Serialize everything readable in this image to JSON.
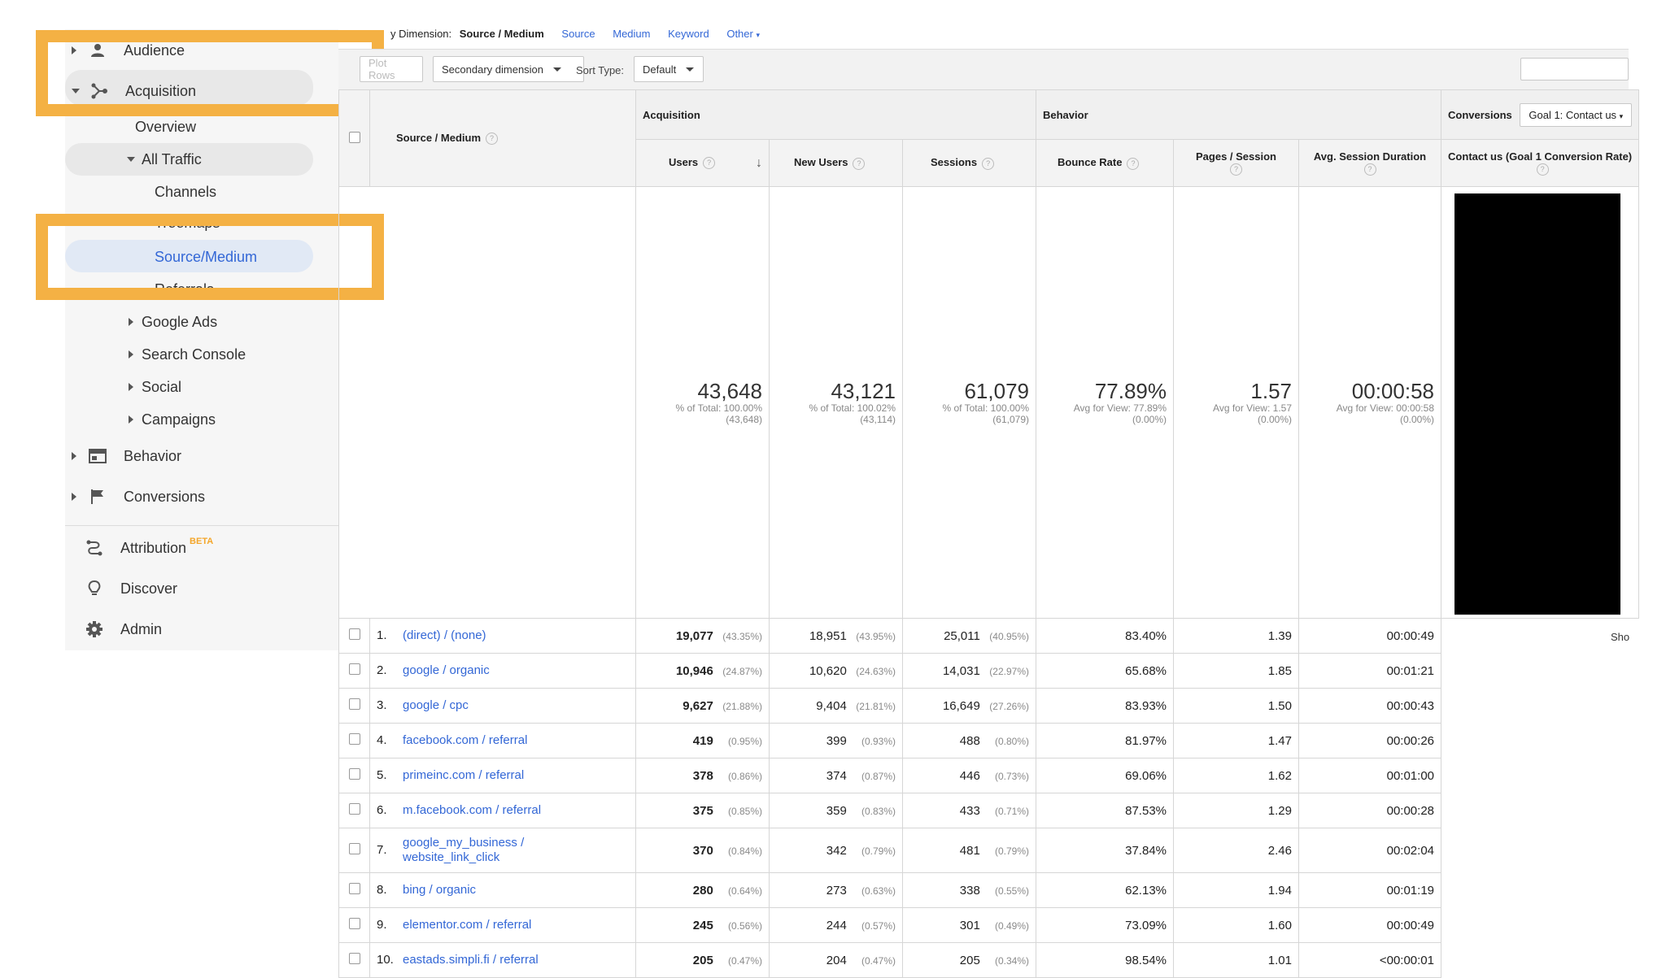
{
  "sidebar": {
    "audience": "Audience",
    "acquisition": "Acquisition",
    "overview": "Overview",
    "all_traffic": "All Traffic",
    "channels": "Channels",
    "treemaps": "Treemaps",
    "source_medium": "Source/Medium",
    "referrals": "Referrals",
    "google_ads": "Google Ads",
    "search_console": "Search Console",
    "social": "Social",
    "campaigns": "Campaigns",
    "behavior": "Behavior",
    "conversions": "Conversions",
    "attribution": "Attribution",
    "attribution_badge": "BETA",
    "discover": "Discover",
    "admin": "Admin"
  },
  "topbar": {
    "primary_dimension_label": "y Dimension:",
    "current": "Source / Medium",
    "options": [
      "Source",
      "Medium",
      "Keyword",
      "Other"
    ]
  },
  "controls": {
    "plot_rows": "Plot Rows",
    "secondary_dimension": "Secondary dimension",
    "sort_type_label": "Sort Type:",
    "sort_type_value": "Default"
  },
  "table": {
    "groups": {
      "acquisition": "Acquisition",
      "behavior": "Behavior",
      "conversions": "Conversions",
      "goal_select": "Goal 1: Contact us"
    },
    "headers": {
      "dimension": "Source / Medium",
      "users": "Users",
      "new_users": "New Users",
      "sessions": "Sessions",
      "bounce_rate": "Bounce Rate",
      "pages_session": "Pages / Session",
      "avg_duration": "Avg. Session Duration",
      "contact_rate": "Contact us (Goal 1 Conversion Rate)"
    },
    "totals": {
      "users": "43,648",
      "users_sub1": "% of Total: 100.00%",
      "users_sub2": "(43,648)",
      "new_users": "43,121",
      "new_users_sub1": "% of Total: 100.02%",
      "new_users_sub2": "(43,114)",
      "sessions": "61,079",
      "sessions_sub1": "% of Total: 100.00%",
      "sessions_sub2": "(61,079)",
      "bounce": "77.89%",
      "bounce_sub1": "Avg for View: 77.89%",
      "bounce_sub2": "(0.00%)",
      "pps": "1.57",
      "pps_sub1": "Avg for View: 1.57",
      "pps_sub2": "(0.00%)",
      "dur": "00:00:58",
      "dur_sub1": "Avg for View: 00:00:58",
      "dur_sub2": "(0.00%)"
    },
    "rows": [
      {
        "n": "1.",
        "dim": "(direct) / (none)",
        "users": "19,077",
        "users_pct": "(43.35%)",
        "new_users": "18,951",
        "new_users_pct": "(43.95%)",
        "sessions": "25,011",
        "sessions_pct": "(40.95%)",
        "bounce": "83.40%",
        "pps": "1.39",
        "dur": "00:00:49"
      },
      {
        "n": "2.",
        "dim": "google / organic",
        "users": "10,946",
        "users_pct": "(24.87%)",
        "new_users": "10,620",
        "new_users_pct": "(24.63%)",
        "sessions": "14,031",
        "sessions_pct": "(22.97%)",
        "bounce": "65.68%",
        "pps": "1.85",
        "dur": "00:01:21"
      },
      {
        "n": "3.",
        "dim": "google / cpc",
        "users": "9,627",
        "users_pct": "(21.88%)",
        "new_users": "9,404",
        "new_users_pct": "(21.81%)",
        "sessions": "16,649",
        "sessions_pct": "(27.26%)",
        "bounce": "83.93%",
        "pps": "1.50",
        "dur": "00:00:43"
      },
      {
        "n": "4.",
        "dim": "facebook.com / referral",
        "users": "419",
        "users_pct": "(0.95%)",
        "new_users": "399",
        "new_users_pct": "(0.93%)",
        "sessions": "488",
        "sessions_pct": "(0.80%)",
        "bounce": "81.97%",
        "pps": "1.47",
        "dur": "00:00:26"
      },
      {
        "n": "5.",
        "dim": "primeinc.com / referral",
        "users": "378",
        "users_pct": "(0.86%)",
        "new_users": "374",
        "new_users_pct": "(0.87%)",
        "sessions": "446",
        "sessions_pct": "(0.73%)",
        "bounce": "69.06%",
        "pps": "1.62",
        "dur": "00:01:00"
      },
      {
        "n": "6.",
        "dim": "m.facebook.com / referral",
        "users": "375",
        "users_pct": "(0.85%)",
        "new_users": "359",
        "new_users_pct": "(0.83%)",
        "sessions": "433",
        "sessions_pct": "(0.71%)",
        "bounce": "87.53%",
        "pps": "1.29",
        "dur": "00:00:28"
      },
      {
        "n": "7.",
        "dim": "google_my_business / website_link_click",
        "users": "370",
        "users_pct": "(0.84%)",
        "new_users": "342",
        "new_users_pct": "(0.79%)",
        "sessions": "481",
        "sessions_pct": "(0.79%)",
        "bounce": "37.84%",
        "pps": "2.46",
        "dur": "00:02:04"
      },
      {
        "n": "8.",
        "dim": "bing / organic",
        "users": "280",
        "users_pct": "(0.64%)",
        "new_users": "273",
        "new_users_pct": "(0.63%)",
        "sessions": "338",
        "sessions_pct": "(0.55%)",
        "bounce": "62.13%",
        "pps": "1.94",
        "dur": "00:01:19"
      },
      {
        "n": "9.",
        "dim": "elementor.com / referral",
        "users": "245",
        "users_pct": "(0.56%)",
        "new_users": "244",
        "new_users_pct": "(0.57%)",
        "sessions": "301",
        "sessions_pct": "(0.49%)",
        "bounce": "73.09%",
        "pps": "1.60",
        "dur": "00:00:49"
      },
      {
        "n": "10.",
        "dim": "eastads.simpli.fi / referral",
        "users": "205",
        "users_pct": "(0.47%)",
        "new_users": "204",
        "new_users_pct": "(0.47%)",
        "sessions": "205",
        "sessions_pct": "(0.34%)",
        "bounce": "98.54%",
        "pps": "1.01",
        "dur": "<00:00:01"
      }
    ]
  },
  "footer": {
    "show_rows": "Sho"
  },
  "colors": {
    "highlight": "#f4b144",
    "link": "#3367d6",
    "selected_bg": "#e1e9f5"
  }
}
